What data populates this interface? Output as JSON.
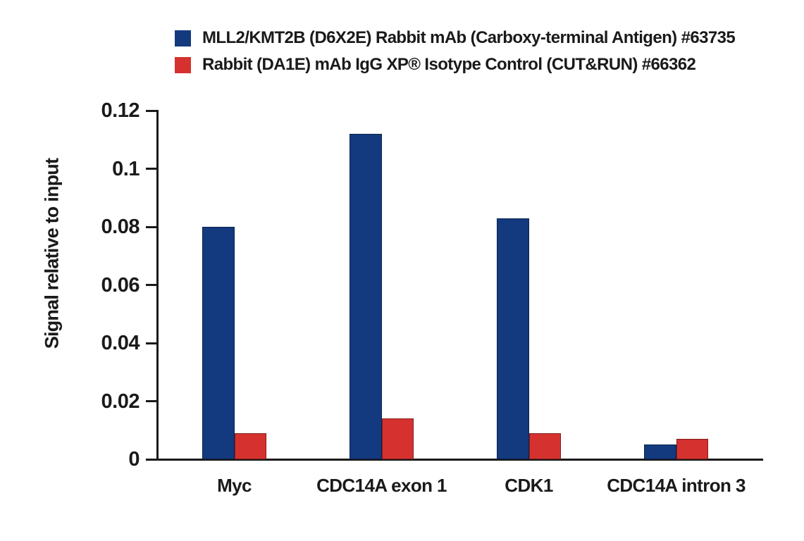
{
  "figure": {
    "background": "#ffffff",
    "axis_color": "#1a1a1a"
  },
  "chart_data": {
    "type": "bar",
    "title": "",
    "categories": [
      "Myc",
      "CDC14A exon 1",
      "CDK1",
      "CDC14A intron 3"
    ],
    "series": [
      {
        "name": "MLL2/KMT2B (D6X2E) Rabbit mAb (Carboxy-terminal Antigen) #63735",
        "color": "#133a7e",
        "values": [
          0.08,
          0.112,
          0.083,
          0.005
        ]
      },
      {
        "name": "Rabbit (DA1E) mAb IgG XP® Isotype Control (CUT&RUN) #66362",
        "color": "#d5322f",
        "values": [
          0.009,
          0.014,
          0.009,
          0.007
        ]
      }
    ],
    "xlabel": "",
    "ylabel": "Signal relative to input",
    "ylim": [
      0,
      0.12
    ],
    "yticks": [
      0,
      0.02,
      0.04,
      0.06,
      0.08,
      0.1,
      0.12
    ],
    "ytick_labels": [
      "0",
      "0.02",
      "0.04",
      "0.06",
      "0.08",
      "0.1",
      "0.12"
    ],
    "grid": false,
    "legend_position": "top"
  }
}
